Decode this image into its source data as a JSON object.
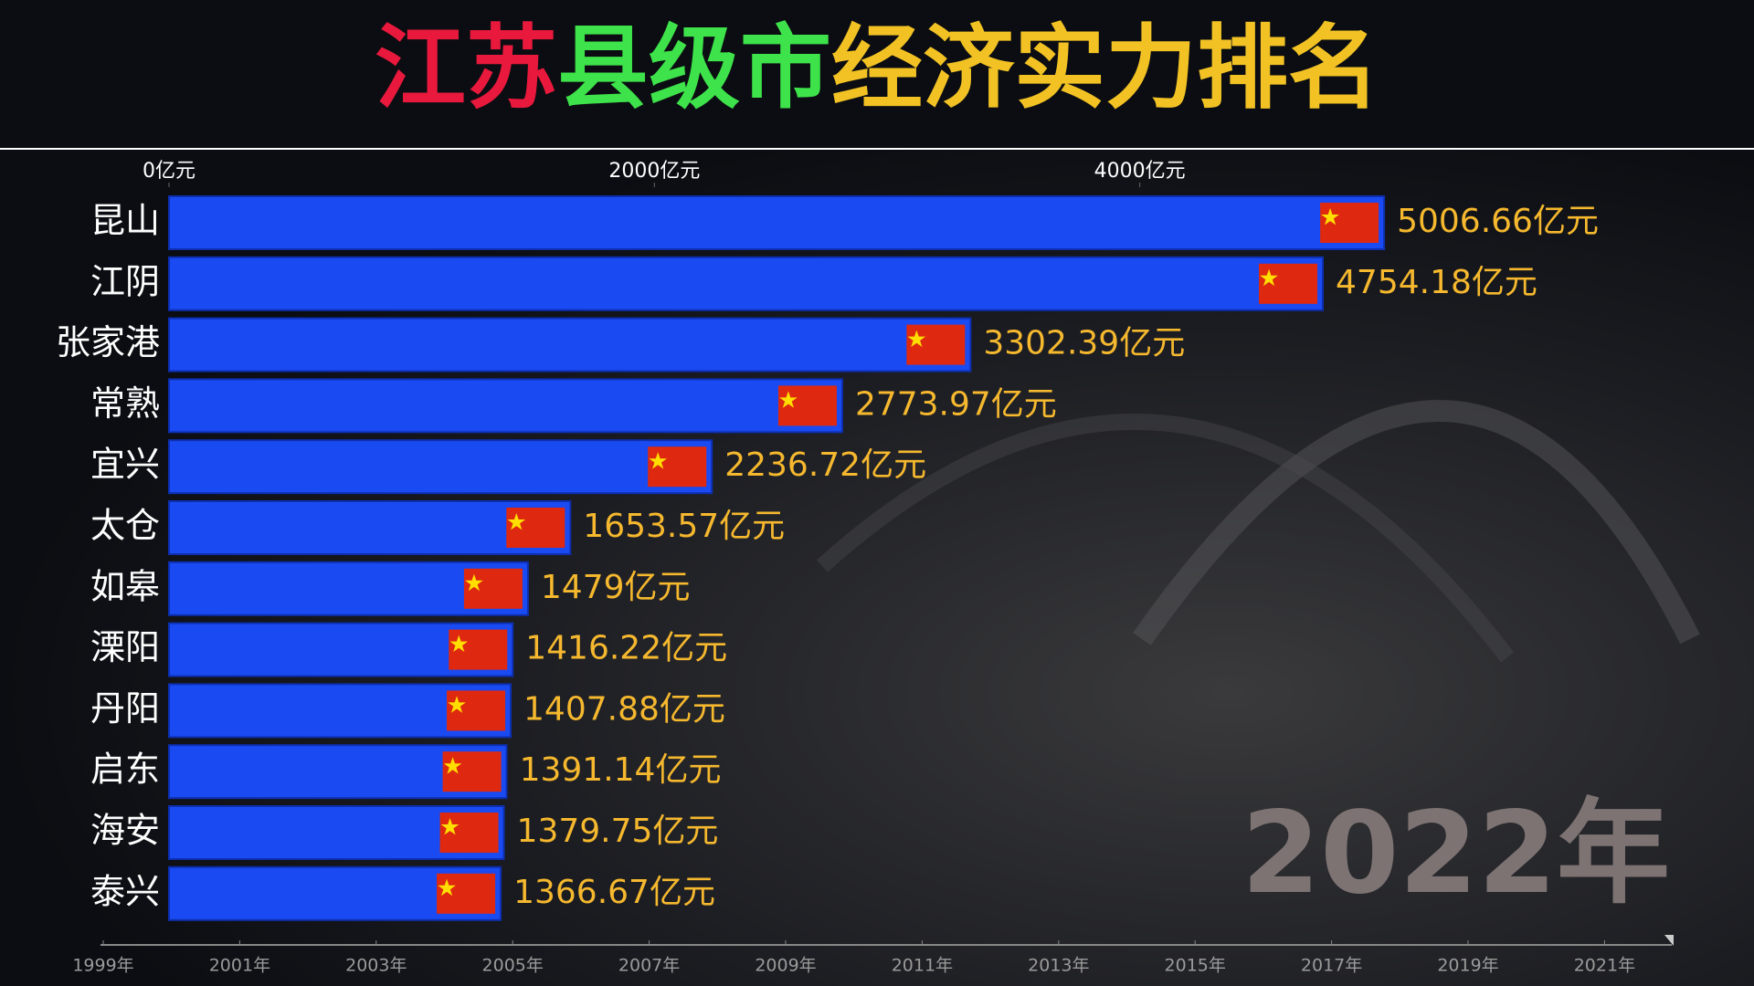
{
  "chart_data": {
    "type": "bar",
    "orientation": "horizontal",
    "title": [
      {
        "text": "江苏",
        "color": "#e8193c"
      },
      {
        "text": "县级市",
        "color": "#3ee24a"
      },
      {
        "text": "经济实力排名",
        "color": "#f2c224"
      }
    ],
    "categories": [
      "昆山",
      "江阴",
      "张家港",
      "常熟",
      "宜兴",
      "太仓",
      "如皋",
      "溧阳",
      "丹阳",
      "启东",
      "海安",
      "泰兴"
    ],
    "values": [
      5006.66,
      4754.18,
      3302.39,
      2773.97,
      2236.72,
      1653.57,
      1479,
      1416.22,
      1407.88,
      1391.14,
      1379.75,
      1366.67
    ],
    "value_labels": [
      "5006.66亿元",
      "4754.18亿元",
      "3302.39亿元",
      "2773.97亿元",
      "2236.72亿元",
      "1653.57亿元",
      "1479亿元",
      "1416.22亿元",
      "1407.88亿元",
      "1391.14亿元",
      "1379.75亿元",
      "1366.67亿元"
    ],
    "color": "#1a4af2",
    "xlim": [
      0,
      6000
    ],
    "xticks": [
      {
        "value": 0,
        "label": "0亿元"
      },
      {
        "value": 2000,
        "label": "2000亿元"
      },
      {
        "value": 4000,
        "label": "4000亿元"
      }
    ],
    "year": "2022年",
    "timeline": [
      "1999年",
      "2001年",
      "2003年",
      "2005年",
      "2007年",
      "2009年",
      "2011年",
      "2013年",
      "2015年",
      "2017年",
      "2019年",
      "2021年"
    ]
  }
}
